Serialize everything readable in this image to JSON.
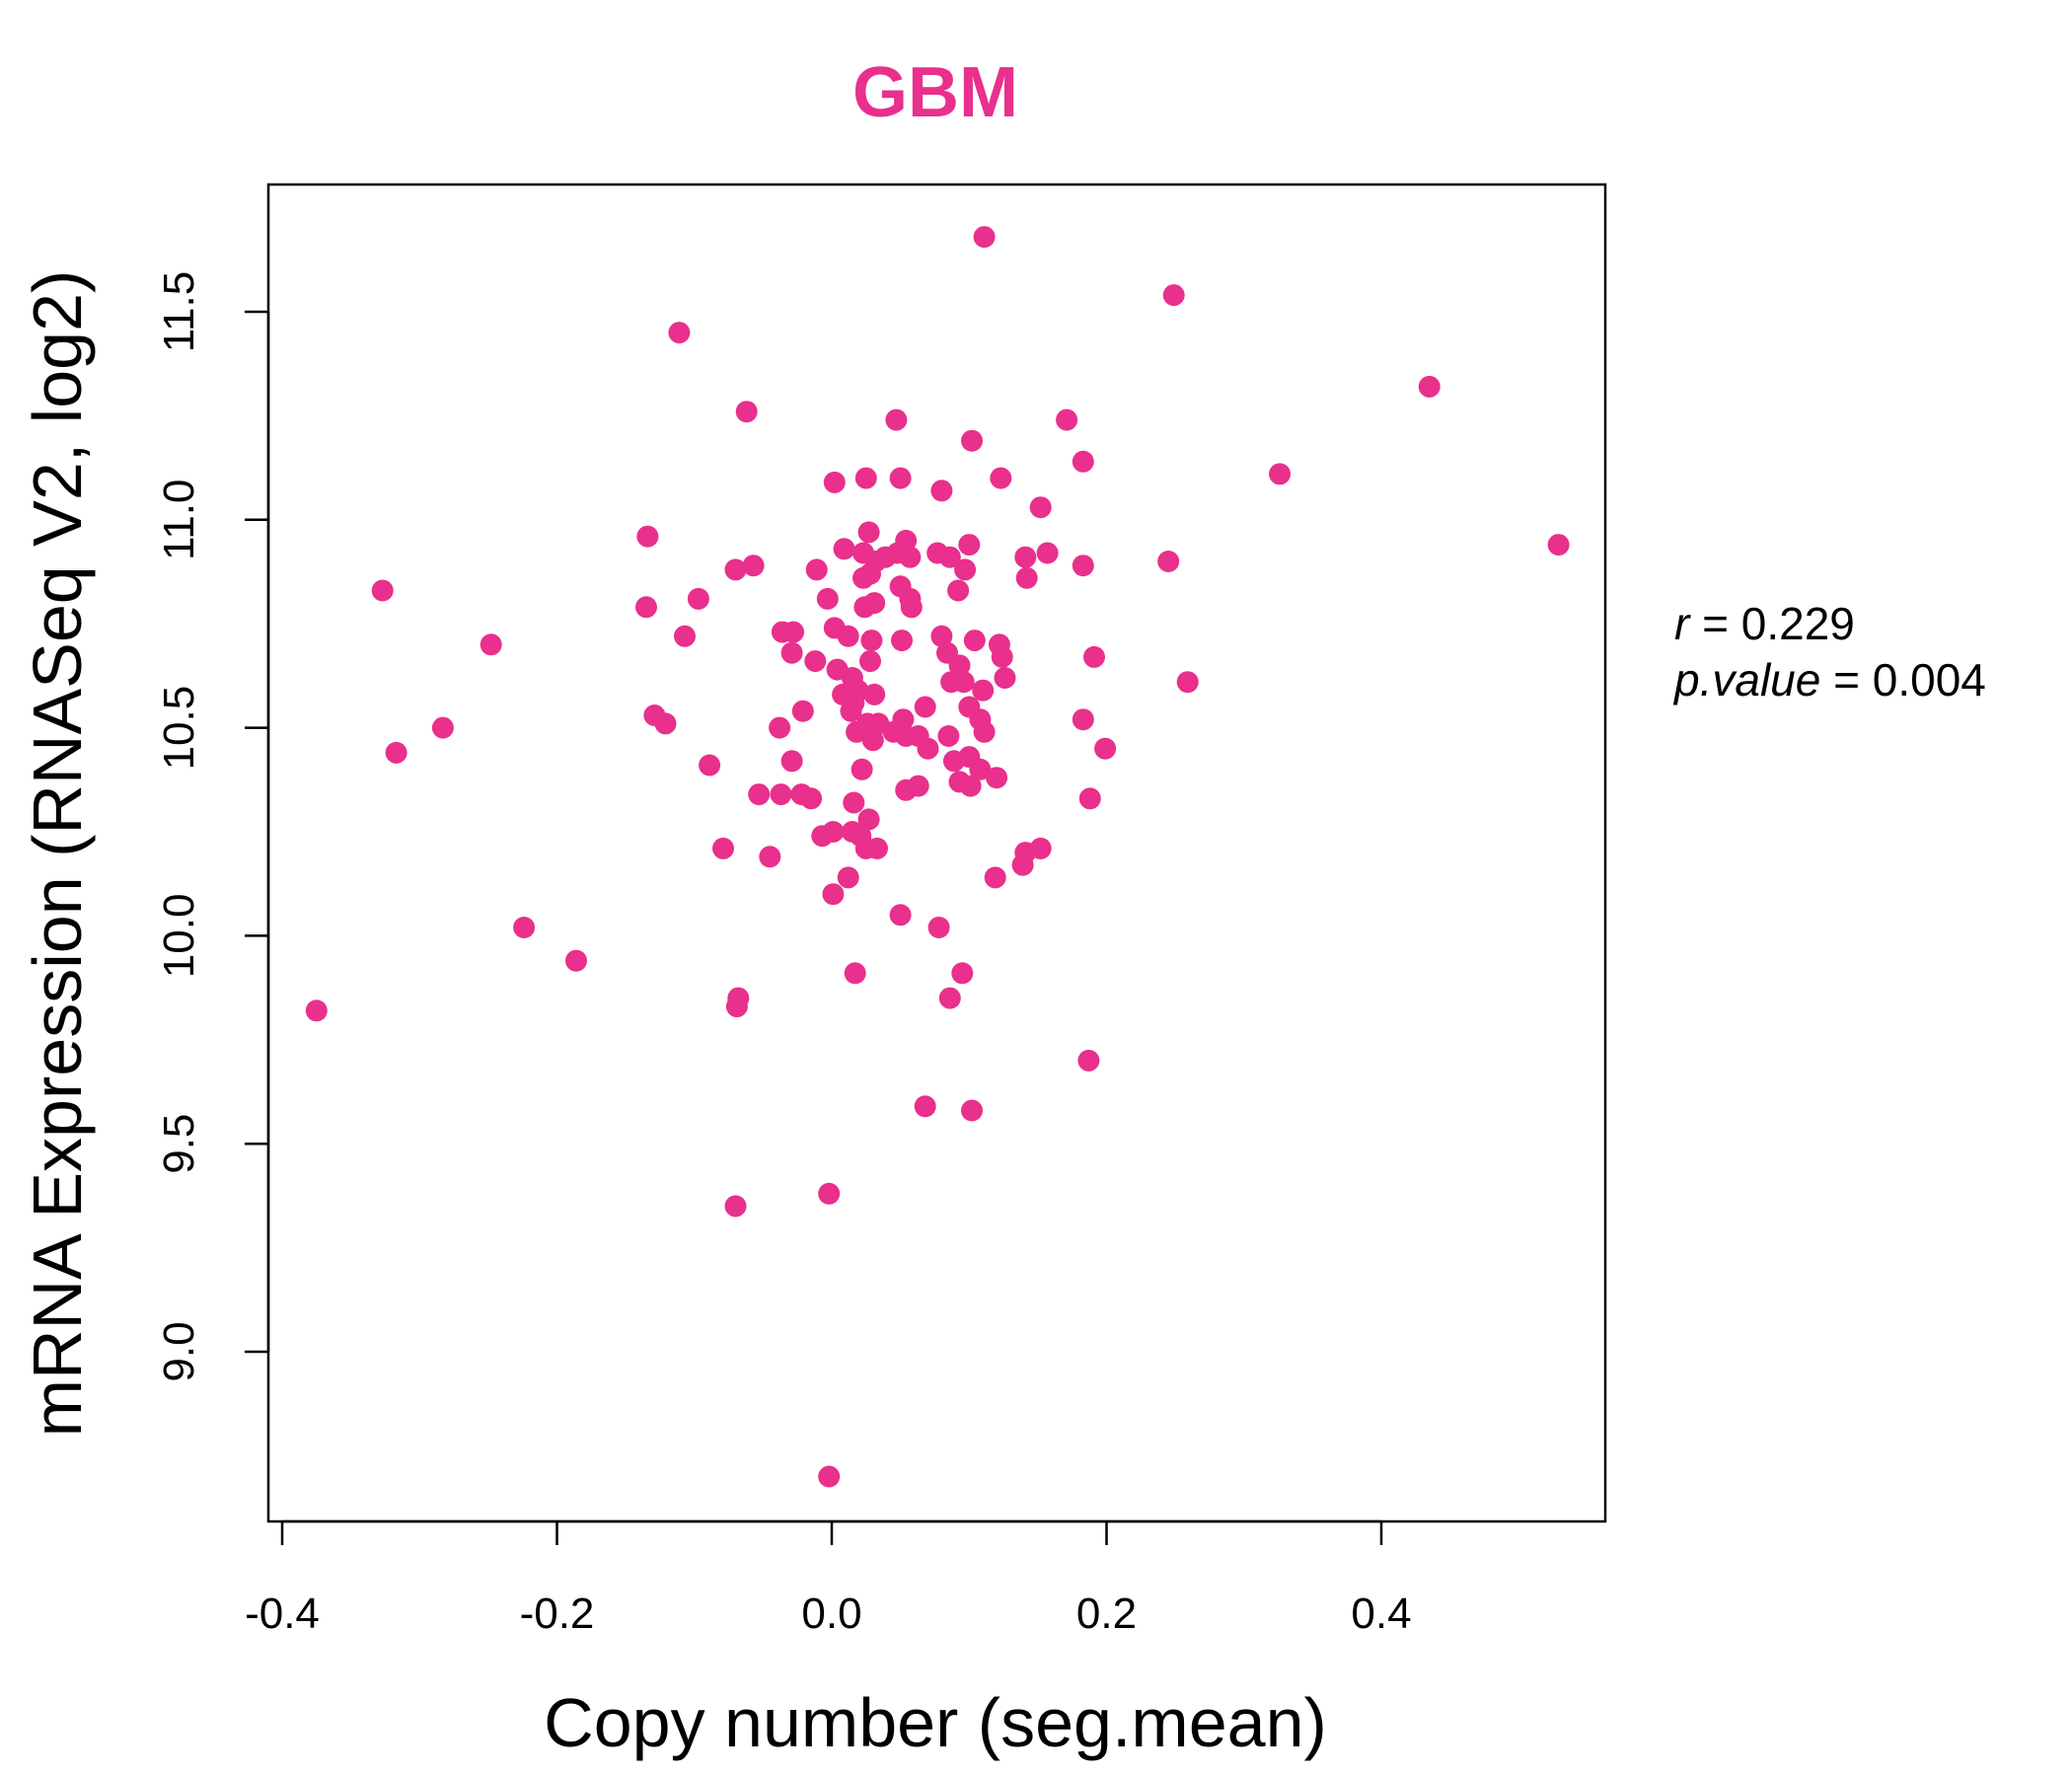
{
  "colors": {
    "accent": "#e8308c",
    "axis": "#000000"
  },
  "chart_data": {
    "type": "scatter",
    "title": "GBM",
    "xlabel": "Copy number (seg.mean)",
    "ylabel": "mRNA Expression (RNASeq V2, log2)",
    "xlim": [
      -0.4,
      0.55
    ],
    "ylim": [
      8.7,
      11.7
    ],
    "xticks": [
      "-0.4",
      "-0.2",
      "0.0",
      "0.2",
      "0.4"
    ],
    "xtick_values": [
      -0.4,
      -0.2,
      0.0,
      0.2,
      0.4
    ],
    "yticks": [
      "9.0",
      "9.5",
      "10.0",
      "10.5",
      "11.0",
      "11.5"
    ],
    "ytick_values": [
      9.0,
      9.5,
      10.0,
      10.5,
      11.0,
      11.5
    ],
    "grid": false,
    "stats": {
      "r_label": "r",
      "r_value": "0.229",
      "p_label": "p.value",
      "p_value": "0.004"
    },
    "points": [
      [
        0.111,
        11.68
      ],
      [
        0.249,
        11.54
      ],
      [
        -0.111,
        11.45
      ],
      [
        0.435,
        11.32
      ],
      [
        -0.062,
        11.26
      ],
      [
        0.047,
        11.24
      ],
      [
        0.171,
        11.24
      ],
      [
        0.102,
        11.19
      ],
      [
        0.183,
        11.14
      ],
      [
        0.326,
        11.11
      ],
      [
        0.002,
        11.09
      ],
      [
        0.025,
        11.1
      ],
      [
        0.05,
        11.1
      ],
      [
        0.123,
        11.1
      ],
      [
        0.08,
        11.07
      ],
      [
        0.152,
        11.03
      ],
      [
        0.529,
        10.94
      ],
      [
        -0.134,
        10.96
      ],
      [
        0.027,
        10.97
      ],
      [
        0.054,
        10.95
      ],
      [
        0.1,
        10.94
      ],
      [
        0.009,
        10.93
      ],
      [
        0.023,
        10.92
      ],
      [
        0.032,
        10.9
      ],
      [
        0.039,
        10.91
      ],
      [
        0.048,
        10.92
      ],
      [
        0.057,
        10.91
      ],
      [
        0.077,
        10.92
      ],
      [
        0.086,
        10.91
      ],
      [
        0.141,
        10.91
      ],
      [
        0.157,
        10.92
      ],
      [
        0.245,
        10.9
      ],
      [
        -0.057,
        10.89
      ],
      [
        -0.07,
        10.88
      ],
      [
        -0.011,
        10.88
      ],
      [
        0.023,
        10.86
      ],
      [
        0.05,
        10.84
      ],
      [
        0.028,
        10.87
      ],
      [
        0.097,
        10.88
      ],
      [
        0.183,
        10.89
      ],
      [
        0.142,
        10.86
      ],
      [
        -0.327,
        10.83
      ],
      [
        -0.097,
        10.81
      ],
      [
        -0.003,
        10.81
      ],
      [
        0.057,
        10.81
      ],
      [
        0.092,
        10.83
      ],
      [
        -0.135,
        10.79
      ],
      [
        0.024,
        10.79
      ],
      [
        0.031,
        10.8
      ],
      [
        0.058,
        10.79
      ],
      [
        -0.036,
        10.73
      ],
      [
        -0.028,
        10.73
      ],
      [
        0.002,
        10.74
      ],
      [
        0.012,
        10.72
      ],
      [
        -0.107,
        10.72
      ],
      [
        0.029,
        10.71
      ],
      [
        0.051,
        10.71
      ],
      [
        0.08,
        10.72
      ],
      [
        0.104,
        10.71
      ],
      [
        0.122,
        10.7
      ],
      [
        -0.248,
        10.7
      ],
      [
        -0.029,
        10.68
      ],
      [
        0.084,
        10.68
      ],
      [
        0.124,
        10.67
      ],
      [
        -0.012,
        10.66
      ],
      [
        0.028,
        10.66
      ],
      [
        0.093,
        10.65
      ],
      [
        0.191,
        10.67
      ],
      [
        0.004,
        10.64
      ],
      [
        0.015,
        10.62
      ],
      [
        0.087,
        10.61
      ],
      [
        0.096,
        10.61
      ],
      [
        0.11,
        10.59
      ],
      [
        0.126,
        10.62
      ],
      [
        0.259,
        10.61
      ],
      [
        0.008,
        10.58
      ],
      [
        0.019,
        10.59
      ],
      [
        0.031,
        10.58
      ],
      [
        0.016,
        10.56
      ],
      [
        -0.021,
        10.54
      ],
      [
        0.014,
        10.54
      ],
      [
        0.068,
        10.55
      ],
      [
        0.1,
        10.55
      ],
      [
        0.108,
        10.52
      ],
      [
        -0.129,
        10.53
      ],
      [
        -0.121,
        10.51
      ],
      [
        0.026,
        10.51
      ],
      [
        0.034,
        10.51
      ],
      [
        0.052,
        10.52
      ],
      [
        0.183,
        10.52
      ],
      [
        -0.283,
        10.5
      ],
      [
        -0.038,
        10.5
      ],
      [
        0.018,
        10.49
      ],
      [
        0.045,
        10.49
      ],
      [
        0.054,
        10.48
      ],
      [
        0.063,
        10.48
      ],
      [
        0.085,
        10.48
      ],
      [
        0.111,
        10.49
      ],
      [
        0.03,
        10.47
      ],
      [
        0.07,
        10.45
      ],
      [
        -0.317,
        10.44
      ],
      [
        0.199,
        10.45
      ],
      [
        0.089,
        10.42
      ],
      [
        0.1,
        10.43
      ],
      [
        -0.029,
        10.42
      ],
      [
        -0.089,
        10.41
      ],
      [
        0.022,
        10.4
      ],
      [
        0.108,
        10.4
      ],
      [
        0.12,
        10.38
      ],
      [
        0.063,
        10.36
      ],
      [
        0.093,
        10.37
      ],
      [
        0.101,
        10.36
      ],
      [
        0.054,
        10.35
      ],
      [
        -0.053,
        10.34
      ],
      [
        -0.037,
        10.34
      ],
      [
        -0.022,
        10.34
      ],
      [
        -0.015,
        10.33
      ],
      [
        0.016,
        10.32
      ],
      [
        0.188,
        10.33
      ],
      [
        0.027,
        10.28
      ],
      [
        0.015,
        10.25
      ],
      [
        0.001,
        10.25
      ],
      [
        -0.007,
        10.24
      ],
      [
        0.021,
        10.24
      ],
      [
        0.025,
        10.21
      ],
      [
        0.033,
        10.21
      ],
      [
        -0.079,
        10.21
      ],
      [
        0.141,
        10.2
      ],
      [
        0.152,
        10.21
      ],
      [
        -0.045,
        10.19
      ],
      [
        0.139,
        10.17
      ],
      [
        0.119,
        10.14
      ],
      [
        0.012,
        10.14
      ],
      [
        0.001,
        10.1
      ],
      [
        0.05,
        10.05
      ],
      [
        0.078,
        10.02
      ],
      [
        -0.224,
        10.02
      ],
      [
        -0.186,
        9.94
      ],
      [
        0.017,
        9.91
      ],
      [
        0.095,
        9.91
      ],
      [
        -0.068,
        9.85
      ],
      [
        -0.069,
        9.83
      ],
      [
        0.086,
        9.85
      ],
      [
        -0.375,
        9.82
      ],
      [
        0.187,
        9.7
      ],
      [
        0.068,
        9.59
      ],
      [
        0.102,
        9.58
      ],
      [
        -0.002,
        9.38
      ],
      [
        -0.07,
        9.35
      ],
      [
        -0.002,
        8.7
      ]
    ]
  }
}
